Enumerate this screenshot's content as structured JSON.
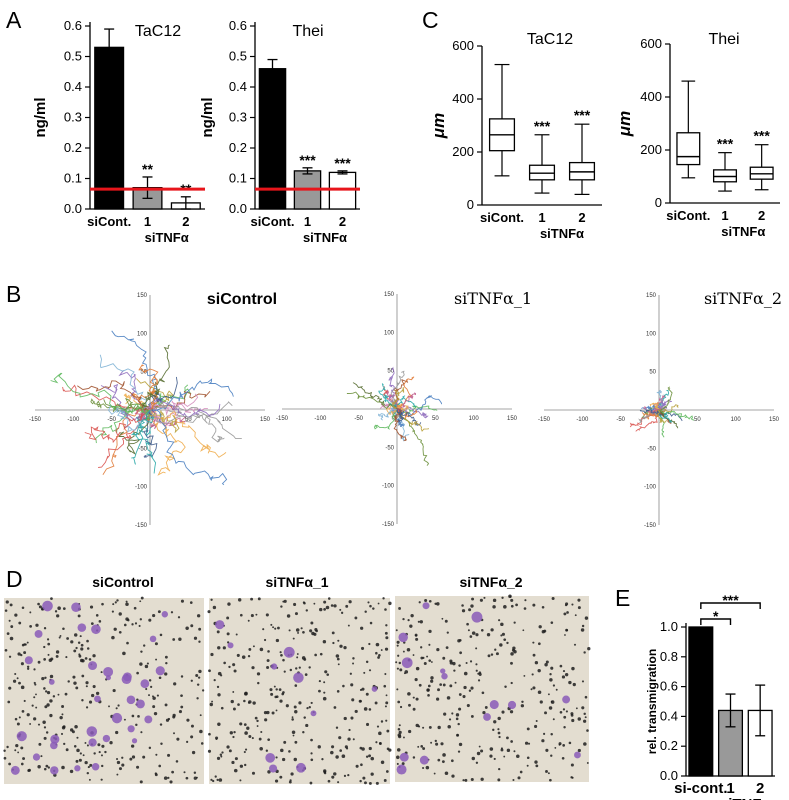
{
  "colors": {
    "black": "#000000",
    "gray": "#999999",
    "white": "#ffffff",
    "threshold": "#e8151b",
    "stain": "#8a5ab8",
    "photo_bg": "#e3ddd0"
  },
  "panels": {
    "A": "A",
    "B": "B",
    "C": "C",
    "D": "D",
    "E": "E"
  },
  "chart_data": [
    {
      "panel": "A",
      "type": "bar",
      "title": "TaC12",
      "ylabel": "ng/ml",
      "ylim": [
        0,
        0.6
      ],
      "yticks": [
        "0.0",
        "0.1",
        "0.2",
        "0.3",
        "0.4",
        "0.5",
        "0.6"
      ],
      "categories": [
        "siCont.",
        "1",
        "2"
      ],
      "group_label": "siTNFα",
      "values": [
        0.53,
        0.07,
        0.02
      ],
      "errors": [
        0.06,
        0.035,
        0.02
      ],
      "fills": [
        "#000000",
        "#999999",
        "#ffffff"
      ],
      "significance": [
        "",
        "**",
        "**"
      ],
      "threshold": 0.065
    },
    {
      "panel": "A",
      "type": "bar",
      "title": "Thei",
      "ylabel": "ng/ml",
      "ylim": [
        0,
        0.6
      ],
      "yticks": [
        "0.0",
        "0.1",
        "0.2",
        "0.3",
        "0.4",
        "0.5",
        "0.6"
      ],
      "categories": [
        "siCont.",
        "1",
        "2"
      ],
      "group_label": "siTNFα",
      "values": [
        0.46,
        0.125,
        0.12
      ],
      "errors": [
        0.03,
        0.01,
        0.005
      ],
      "fills": [
        "#000000",
        "#999999",
        "#ffffff"
      ],
      "significance": [
        "",
        "***",
        "***"
      ],
      "threshold": 0.065
    },
    {
      "panel": "C",
      "type": "box",
      "title": "TaC12",
      "ylabel": "μm",
      "ylim": [
        0,
        600
      ],
      "yticks": [
        "0",
        "200",
        "400",
        "600"
      ],
      "categories": [
        "siCont.",
        "1",
        "2"
      ],
      "group_label": "siTNFα",
      "boxes": [
        {
          "min": 110,
          "q1": 205,
          "median": 265,
          "q3": 325,
          "max": 530
        },
        {
          "min": 45,
          "q1": 95,
          "median": 120,
          "q3": 150,
          "max": 265
        },
        {
          "min": 40,
          "q1": 95,
          "median": 125,
          "q3": 160,
          "max": 305
        }
      ],
      "significance": [
        "",
        "***",
        "***"
      ]
    },
    {
      "panel": "C",
      "type": "box",
      "title": "Thei",
      "ylabel": "μm",
      "ylim": [
        0,
        600
      ],
      "yticks": [
        "0",
        "200",
        "400",
        "600"
      ],
      "categories": [
        "siCont.",
        "1",
        "2"
      ],
      "group_label": "siTNFα",
      "boxes": [
        {
          "min": 95,
          "q1": 145,
          "median": 175,
          "q3": 265,
          "max": 460
        },
        {
          "min": 45,
          "q1": 80,
          "median": 100,
          "q3": 125,
          "max": 190
        },
        {
          "min": 50,
          "q1": 90,
          "median": 110,
          "q3": 135,
          "max": 220
        }
      ],
      "significance": [
        "",
        "***",
        "***"
      ]
    },
    {
      "panel": "B",
      "type": "scatter",
      "title": "siControl",
      "xlim": [
        -150,
        150
      ],
      "ylim": [
        -150,
        150
      ],
      "xticks": [
        "-150",
        "-100",
        "-50",
        "0",
        "50",
        "100",
        "150"
      ],
      "yticks": [
        "150",
        "100",
        "50",
        "0",
        "-50",
        "-100",
        "-150"
      ],
      "spread": 75
    },
    {
      "panel": "B",
      "type": "scatter",
      "title": "siTNFα_1",
      "xlim": [
        -150,
        150
      ],
      "ylim": [
        -150,
        150
      ],
      "xticks": [
        "-150",
        "-100",
        "-50",
        "0",
        "50",
        "100",
        "150"
      ],
      "yticks": [
        "150",
        "100",
        "50",
        "0",
        "-50",
        "-100",
        "-150"
      ],
      "spread": 38
    },
    {
      "panel": "B",
      "type": "scatter",
      "title": "siTNFα_2",
      "xlim": [
        -150,
        150
      ],
      "ylim": [
        -150,
        150
      ],
      "xticks": [
        "-150",
        "-100",
        "-50",
        "0",
        "50",
        "100",
        "150"
      ],
      "yticks": [
        "150",
        "100",
        "50",
        "0",
        "-50",
        "-100",
        "-150"
      ],
      "spread": 26
    },
    {
      "panel": "E",
      "type": "bar",
      "title": "",
      "ylabel": "rel. transmigration",
      "ylim": [
        0,
        1.0
      ],
      "yticks": [
        "0.0",
        "0.2",
        "0.4",
        "0.6",
        "0.8",
        "1.0"
      ],
      "categories": [
        "si-cont.",
        "1",
        "2"
      ],
      "group_label": "siTNFα",
      "values": [
        1.0,
        0.44,
        0.44
      ],
      "errors": [
        0.0,
        0.11,
        0.17
      ],
      "fills": [
        "#000000",
        "#999999",
        "#ffffff"
      ],
      "significance_brackets": [
        {
          "from": 0,
          "to": 1,
          "label": "*"
        },
        {
          "from": 0,
          "to": 2,
          "label": "***"
        }
      ]
    }
  ],
  "photos": [
    {
      "title": "siControl",
      "stained_cells": 34
    },
    {
      "title": "siTNFα_1",
      "stained_cells": 10
    },
    {
      "title": "siTNFα_2",
      "stained_cells": 14
    }
  ]
}
